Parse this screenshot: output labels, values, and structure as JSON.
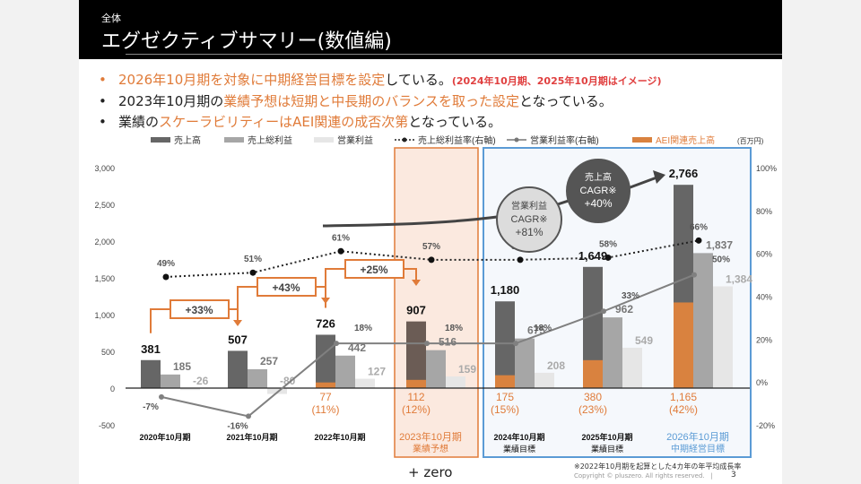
{
  "header": {
    "section": "全体",
    "title": "エグゼクティブサマリー(数値編)"
  },
  "bullets": [
    {
      "parts": [
        {
          "text": "2026年10月期を対象に中期経営目標を設定",
          "style": "orange"
        },
        {
          "text": "している。",
          "style": "normal"
        },
        {
          "text": "(2024年10月期、2025年10月期はイメージ)",
          "style": "red"
        }
      ]
    },
    {
      "parts": [
        {
          "text": "2023年10月期の",
          "style": "normal"
        },
        {
          "text": "業績予想は短期と中長期のバランスを取った設定",
          "style": "orange"
        },
        {
          "text": "となっている。",
          "style": "normal"
        }
      ]
    },
    {
      "parts": [
        {
          "text": "業績の",
          "style": "normal"
        },
        {
          "text": "スケーラビリティーはAEI関連の成否次第",
          "style": "orange"
        },
        {
          "text": "となっている。",
          "style": "normal"
        }
      ]
    }
  ],
  "colors": {
    "sales": "#666666",
    "gross_profit": "#a6a6a6",
    "operating_profit": "#e6e6e6",
    "aei": "#d9823f",
    "accent_orange": "#e07b39",
    "accent_blue": "#5b9bd5",
    "forecast_fill": "#fbe9df",
    "target_fill": "#f5f8fc"
  },
  "chart_data": {
    "type": "bar",
    "unit_label": "(百万円)",
    "categories": [
      "2020年10月期",
      "2021年10月期",
      "2022年10月期",
      "2023年10月期",
      "2024年10月期",
      "2025年10月期",
      "2026年10月期"
    ],
    "category_sublabels": [
      "",
      "",
      "",
      "業績予想",
      "業績目標",
      "業績目標",
      "中期経営目標"
    ],
    "series": [
      {
        "name": "売上高",
        "type": "bar",
        "axis": "left",
        "values": [
          381,
          507,
          726,
          907,
          1180,
          1649,
          2766
        ],
        "labels": [
          "381",
          "507",
          "726",
          "907",
          "1,180",
          "1,649",
          "2,766"
        ]
      },
      {
        "name": "売上総利益",
        "type": "bar",
        "axis": "left",
        "values": [
          185,
          257,
          442,
          516,
          675,
          962,
          1837
        ],
        "labels": [
          "185",
          "257",
          "442",
          "516",
          "675",
          "962",
          "1,837"
        ]
      },
      {
        "name": "営業利益",
        "type": "bar",
        "axis": "left",
        "values": [
          -26,
          -80,
          127,
          159,
          208,
          549,
          1384
        ],
        "labels": [
          "-26",
          "-80",
          "127",
          "159",
          "208",
          "549",
          "1,384"
        ]
      },
      {
        "name": "売上総利益率(右軸)",
        "type": "line",
        "style": "dotted",
        "axis": "right",
        "values": [
          49,
          51,
          61,
          57,
          57,
          58,
          66
        ],
        "labels": [
          "49%",
          "51%",
          "61%",
          "57%",
          "57%",
          "58%",
          "66%"
        ]
      },
      {
        "name": "営業利益率(右軸)",
        "type": "line",
        "style": "solid",
        "axis": "right",
        "values": [
          -7,
          -16,
          18,
          18,
          18,
          33,
          50
        ],
        "labels": [
          "-7%",
          "-16%",
          "18%",
          "18%",
          "18%",
          "33%",
          "50%"
        ]
      },
      {
        "name": "AEI関連売上高",
        "type": "bar-overlay",
        "axis": "left",
        "values": [
          null,
          null,
          77,
          112,
          175,
          380,
          1165
        ],
        "labels": [
          "",
          "",
          "77",
          "112",
          "175",
          "380",
          "1,165"
        ],
        "share_labels": [
          "",
          "",
          "(11%)",
          "(12%)",
          "(15%)",
          "(23%)",
          "(42%)"
        ]
      }
    ],
    "left_axis": {
      "ylim": [
        -500,
        3000
      ],
      "ticks": [
        "-500",
        "0",
        "500",
        "1,000",
        "1,500",
        "2,000",
        "2,500",
        "3,000"
      ],
      "tick_values": [
        -500,
        0,
        500,
        1000,
        1500,
        2000,
        2500,
        3000
      ]
    },
    "right_axis": {
      "ylim": [
        -20,
        100
      ],
      "ticks": [
        "-20%",
        "0%",
        "20%",
        "40%",
        "60%",
        "80%",
        "100%"
      ],
      "tick_values": [
        -20,
        0,
        20,
        40,
        60,
        80,
        100
      ]
    },
    "growth_annotations": [
      {
        "from": 0,
        "to": 1,
        "label": "+33%"
      },
      {
        "from": 1,
        "to": 2,
        "label": "+43%"
      },
      {
        "from": 2,
        "to": 3,
        "label": "+25%"
      }
    ],
    "cagr_bubbles": [
      {
        "title": "営業利益",
        "metric": "CAGR※",
        "value": "+81%"
      },
      {
        "title": "売上高",
        "metric": "CAGR※",
        "value": "+40%"
      }
    ],
    "legend": [
      "売上高",
      "売上総利益",
      "営業利益",
      "売上総利益率(右軸)",
      "営業利益率(右軸)",
      "AEI関連売上高"
    ],
    "legend_position": "top"
  },
  "footer": {
    "logo": "+ zero",
    "footnote": "※2022年10月期を起算とした4カ年の年平均成長率",
    "copyright": "Copyright © pluszero. All rights reserved.",
    "separator": "|",
    "page": "3"
  }
}
